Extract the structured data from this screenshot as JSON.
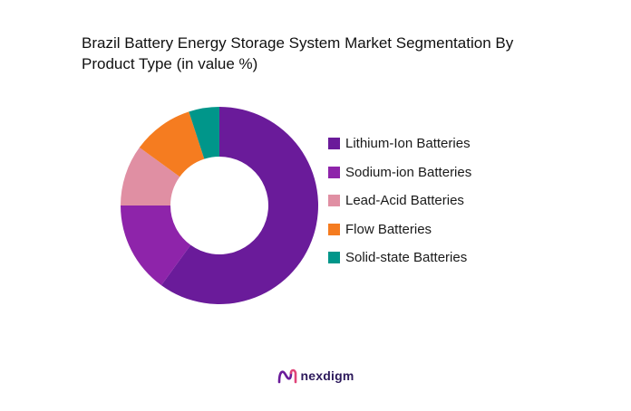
{
  "chart_data": {
    "type": "pie",
    "title": "Brazil Battery Energy Storage System Market Segmentation By Product Type (in value %)",
    "donut": true,
    "categories": [
      "Lithium-Ion Batteries",
      "Sodium-ion Batteries",
      "Lead-Acid Batteries",
      "Flow Batteries",
      "Solid-state Batteries"
    ],
    "values": [
      60,
      15,
      10,
      10,
      5
    ],
    "colors": [
      "#6a1b9a",
      "#8e24aa",
      "#e08fa3",
      "#f57c20",
      "#00968a"
    ],
    "legend_position": "right"
  },
  "brand": {
    "name": "nexdigm",
    "color": "#6a1b9a"
  }
}
